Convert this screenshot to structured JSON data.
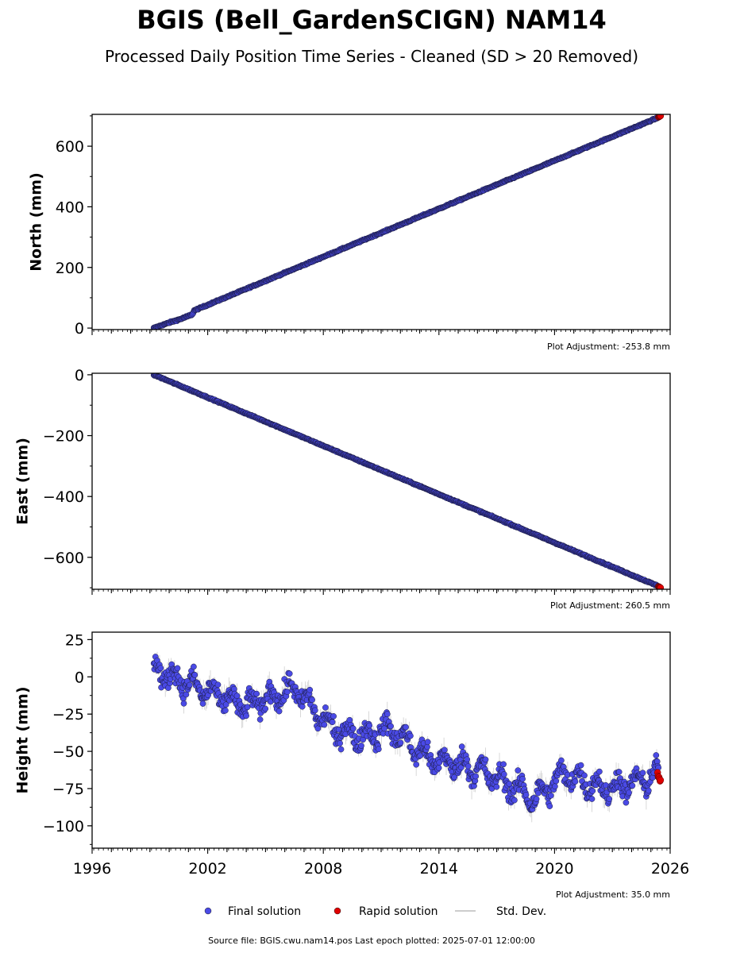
{
  "title": "BGIS (Bell_GardenSCIGN) NAM14",
  "subtitle": "Processed Daily Position Time Series - Cleaned (SD > 20 Removed)",
  "footer": {
    "source": "Source file: BGIS.cwu.nam14.pos  Last epoch plotted: 2025-07-01 12:00:00"
  },
  "legend": [
    {
      "label": "Final solution",
      "color": "#4a4ae6",
      "marker": "dot"
    },
    {
      "label": "Rapid solution",
      "color": "#e00000",
      "marker": "dot"
    },
    {
      "label": "Std. Dev.",
      "color": "#bbbbbb",
      "marker": "line"
    }
  ],
  "chart_data": [
    {
      "type": "scatter",
      "ylabel": "North (mm)",
      "ylim": [
        -5,
        705
      ],
      "yticks": [
        0,
        200,
        400,
        600
      ],
      "ytick_labels": [
        "0",
        "200",
        "400",
        "600"
      ],
      "xlim": [
        1996,
        2026
      ],
      "adjustment": "Plot Adjustment: -253.8 mm",
      "final_series": {
        "start": 1999.2,
        "end": 2025.4,
        "rate_mm_per_yr": 26.7,
        "noise": 2,
        "breakpoints": [
          {
            "x": 1999.2,
            "y": 0
          },
          {
            "x": 2000.0,
            "y": 18
          },
          {
            "x": 2000.6,
            "y": 30
          },
          {
            "x": 2001.2,
            "y": 45
          },
          {
            "x": 2001.3,
            "y": 58
          },
          {
            "x": 2025.4,
            "y": 695
          }
        ]
      },
      "rapid_series": {
        "start": 2025.4,
        "end": 2025.5,
        "y_start": 696,
        "y_end": 700
      }
    },
    {
      "type": "scatter",
      "ylabel": "East (mm)",
      "ylim": [
        -705,
        5
      ],
      "yticks": [
        0,
        -200,
        -400,
        -600
      ],
      "ytick_labels": [
        "0",
        "−200",
        "−400",
        "−600"
      ],
      "xlim": [
        1996,
        2026
      ],
      "adjustment": "Plot Adjustment: 260.5 mm",
      "final_series": {
        "start": 1999.2,
        "end": 2025.4,
        "rate_mm_per_yr": -26.7,
        "noise": 2,
        "breakpoints": [
          {
            "x": 1999.2,
            "y": 0
          },
          {
            "x": 2025.4,
            "y": -695
          }
        ]
      },
      "rapid_series": {
        "start": 2025.4,
        "end": 2025.5,
        "y_start": -696,
        "y_end": -700
      }
    },
    {
      "type": "scatter",
      "ylabel": "Height (mm)",
      "ylim": [
        -115,
        30
      ],
      "yticks": [
        25,
        0,
        -25,
        -50,
        -75,
        -100
      ],
      "ytick_labels": [
        "25",
        "0",
        "−25",
        "−50",
        "−75",
        "−100"
      ],
      "xlim": [
        1996,
        2026
      ],
      "xticks": [
        1996,
        2002,
        2008,
        2014,
        2020,
        2026
      ],
      "xtick_labels": [
        "1996",
        "2002",
        "2008",
        "2014",
        "2020",
        "2026"
      ],
      "adjustment": "Plot Adjustment: 35.0 mm",
      "final_series": {
        "start": 1999.2,
        "end": 2025.4,
        "noise": 7,
        "trend": [
          {
            "x": 1999.2,
            "y": 5
          },
          {
            "x": 2002.0,
            "y": -10
          },
          {
            "x": 2004.0,
            "y": -20
          },
          {
            "x": 2006.5,
            "y": -8
          },
          {
            "x": 2008.5,
            "y": -35
          },
          {
            "x": 2010.0,
            "y": -40
          },
          {
            "x": 2011.5,
            "y": -35
          },
          {
            "x": 2013.5,
            "y": -55
          },
          {
            "x": 2015.5,
            "y": -60
          },
          {
            "x": 2017.0,
            "y": -68
          },
          {
            "x": 2019.0,
            "y": -82
          },
          {
            "x": 2020.5,
            "y": -65
          },
          {
            "x": 2022.5,
            "y": -75
          },
          {
            "x": 2024.0,
            "y": -72
          },
          {
            "x": 2025.4,
            "y": -65
          }
        ]
      },
      "rapid_series": {
        "start": 2025.35,
        "end": 2025.5,
        "y_start": -66,
        "y_end": -70
      }
    }
  ]
}
